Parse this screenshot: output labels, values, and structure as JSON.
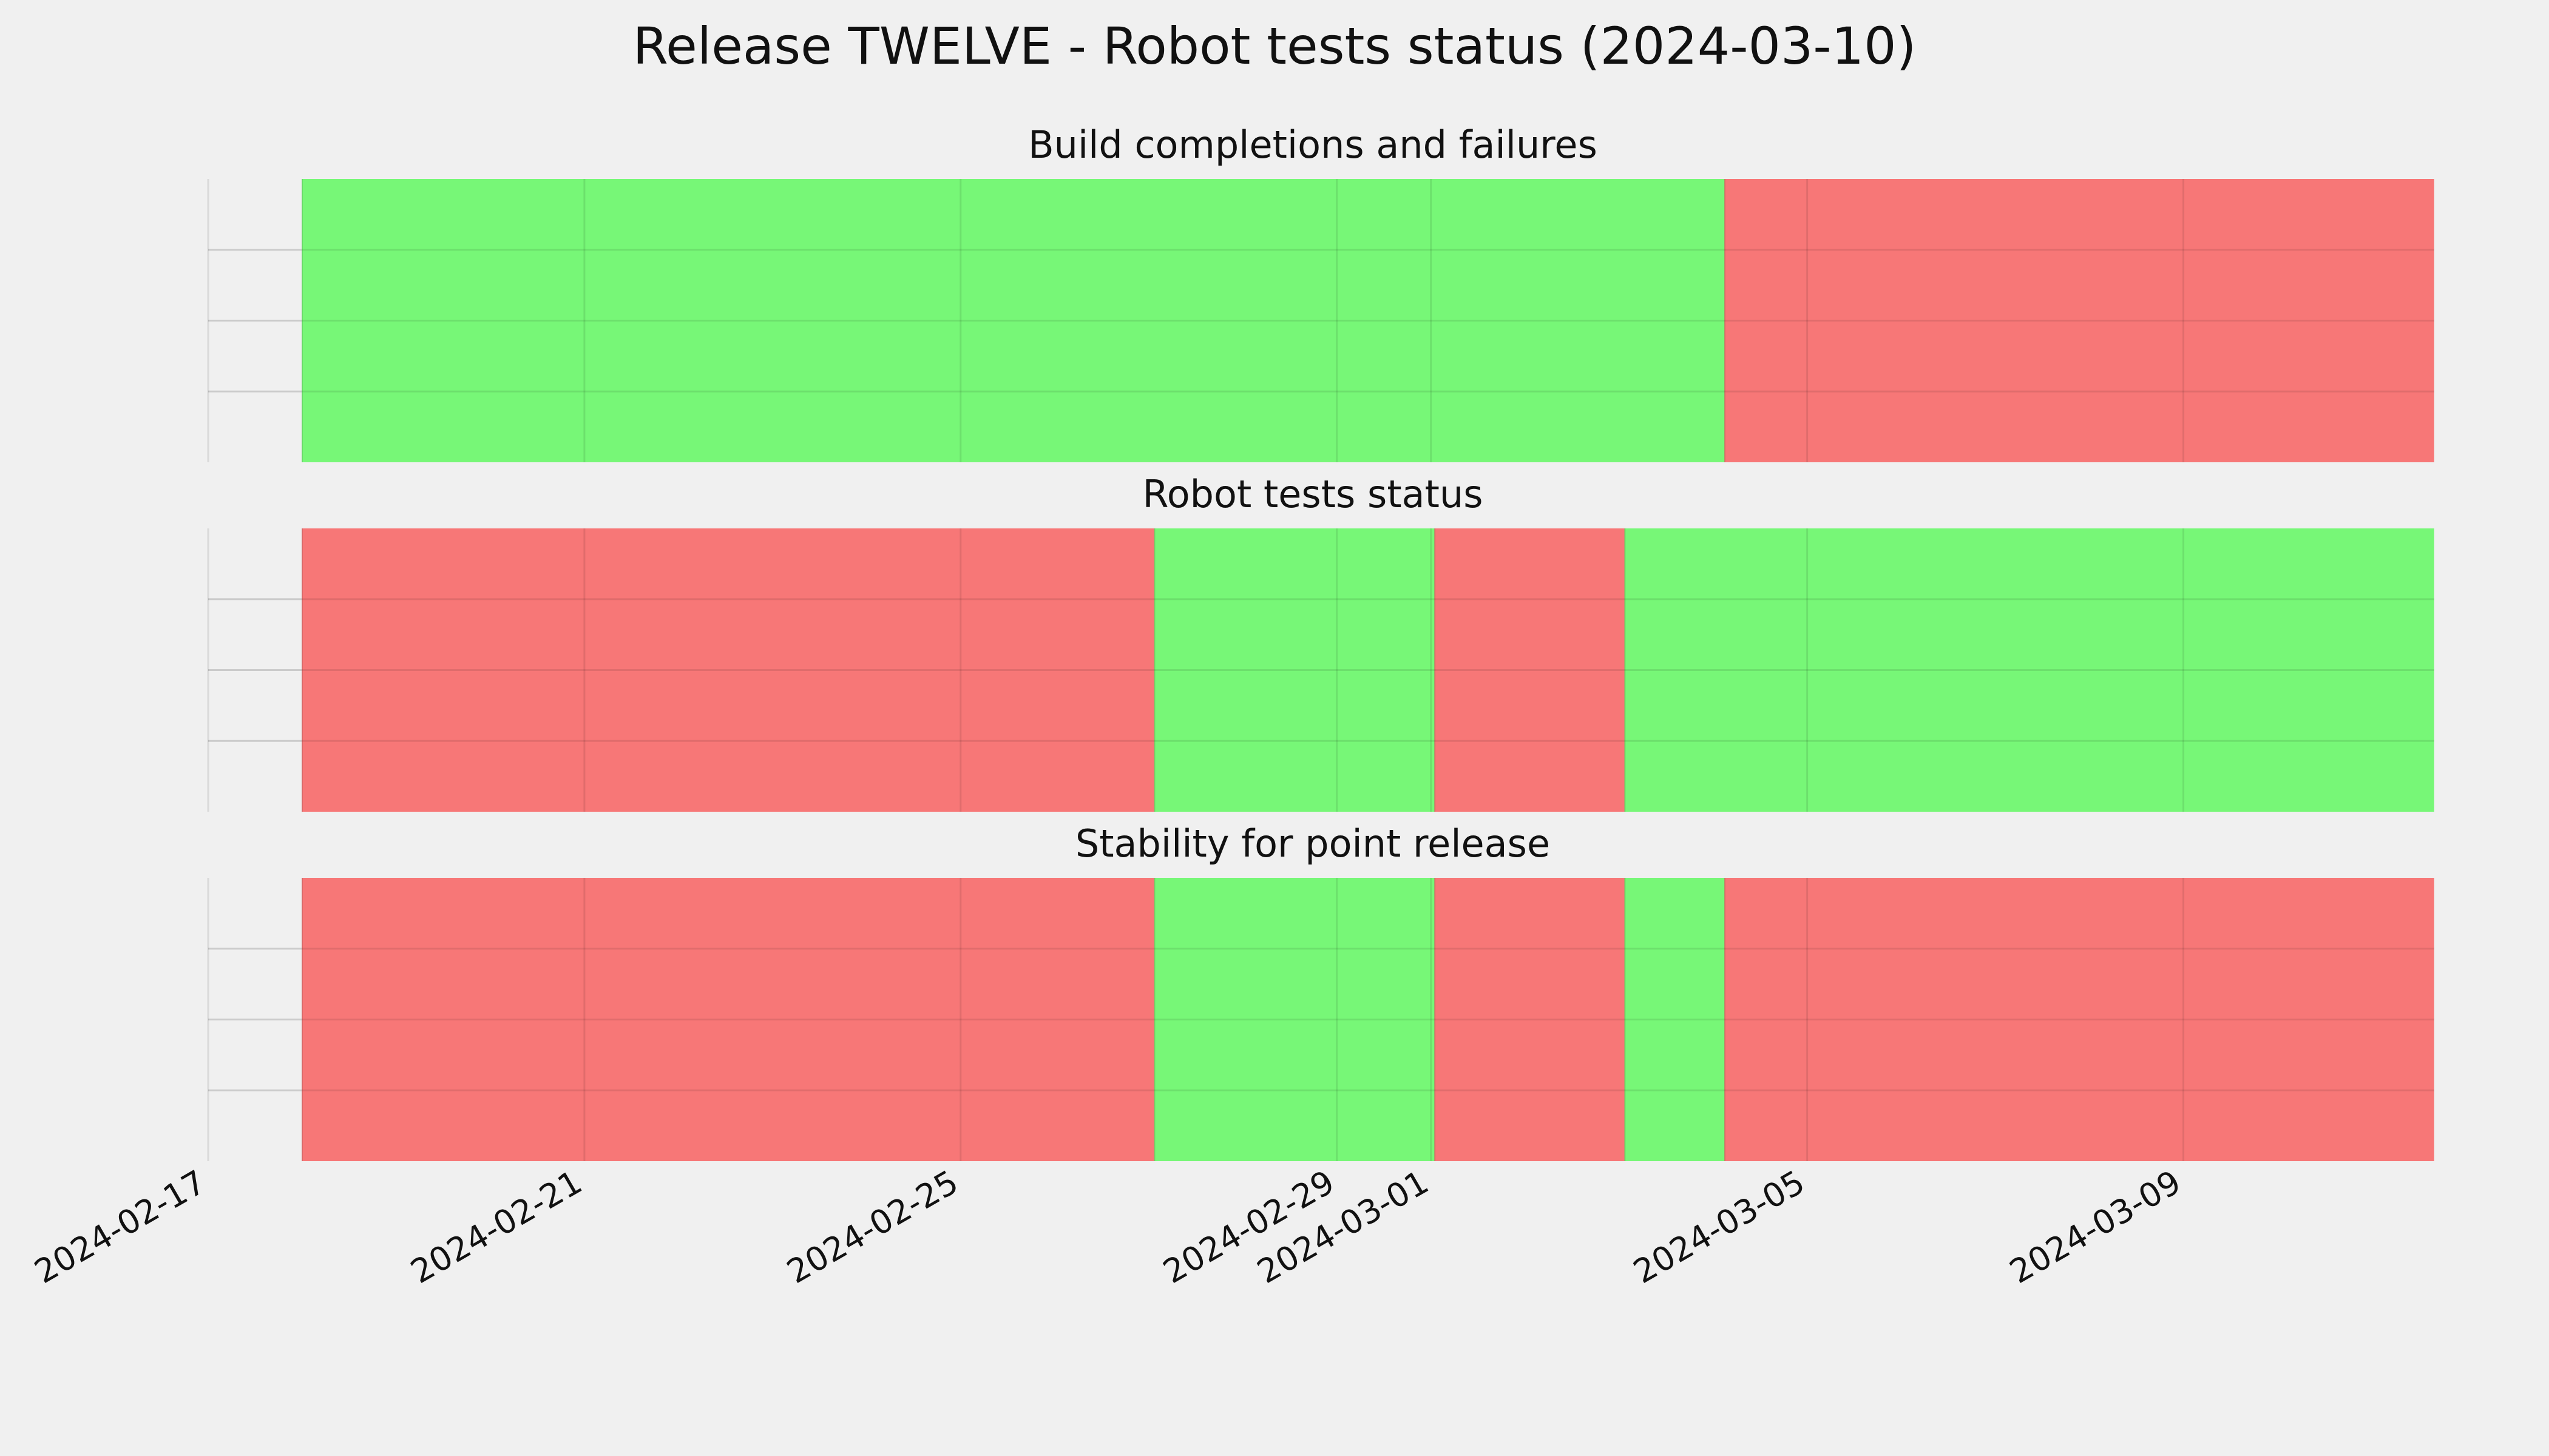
{
  "chart_data": {
    "type": "timeline",
    "title": "Release TWELVE - Robot tests status (2024-03-10)",
    "x_unit": "date",
    "xlim": [
      "2024-02-17",
      "2024-03-11T12:00"
    ],
    "x_ticks": [
      "2024-02-17",
      "2024-02-21",
      "2024-02-25",
      "2024-02-29",
      "2024-03-01",
      "2024-03-05",
      "2024-03-09"
    ],
    "grid": true,
    "ylabels_visible": false,
    "colors": {
      "pass": "#77f777",
      "fail": "#f77777",
      "background": "#f0f0f0",
      "grid": "#cbcbcb"
    },
    "panels": [
      {
        "title": "Build completions and failures",
        "segments": [
          {
            "start": "2024-02-18",
            "end": "2024-03-04T03:00",
            "status": "pass"
          },
          {
            "start": "2024-03-04T03:00",
            "end": "2024-03-11T16:00",
            "status": "fail"
          }
        ]
      },
      {
        "title": "Robot tests status",
        "segments": [
          {
            "start": "2024-02-18",
            "end": "2024-02-27T01:30",
            "status": "fail"
          },
          {
            "start": "2024-02-27T01:30",
            "end": "2024-03-01T01:00",
            "status": "pass"
          },
          {
            "start": "2024-03-01T01:00",
            "end": "2024-03-03T01:30",
            "status": "fail"
          },
          {
            "start": "2024-03-03T01:30",
            "end": "2024-03-11T16:00",
            "status": "pass"
          }
        ]
      },
      {
        "title": "Stability for point release",
        "segments": [
          {
            "start": "2024-02-18",
            "end": "2024-02-27T01:30",
            "status": "fail"
          },
          {
            "start": "2024-02-27T01:30",
            "end": "2024-03-01T01:00",
            "status": "pass"
          },
          {
            "start": "2024-03-01T01:00",
            "end": "2024-03-03T01:30",
            "status": "fail"
          },
          {
            "start": "2024-03-03T01:30",
            "end": "2024-03-04T03:00",
            "status": "pass"
          },
          {
            "start": "2024-03-04T03:00",
            "end": "2024-03-11T16:00",
            "status": "fail"
          }
        ]
      }
    ]
  }
}
